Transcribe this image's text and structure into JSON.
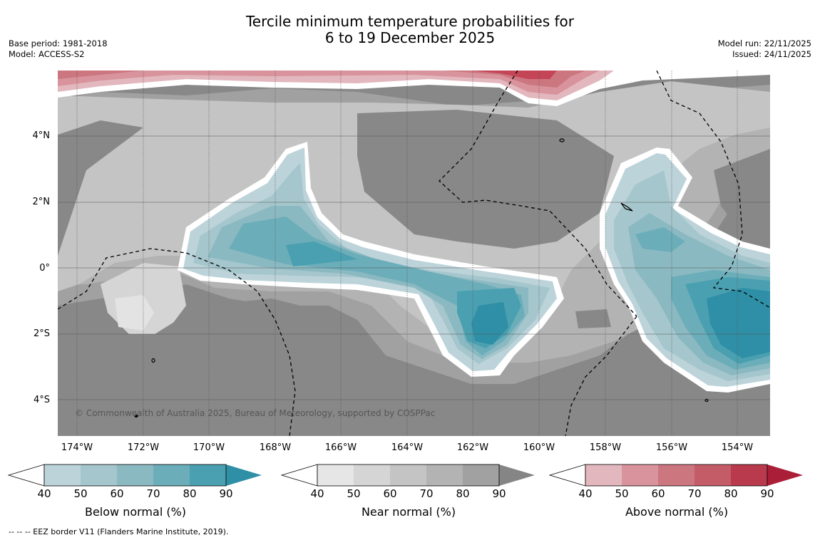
{
  "title": {
    "line1": "Tercile minimum temperature probabilities for",
    "line2": "6 to 19 December 2025"
  },
  "meta_left": {
    "base_period": "Base period: 1981-2018",
    "model": "Model: ACCESS-S2"
  },
  "meta_right": {
    "model_run": "Model run: 22/11/2025",
    "issued": "Issued: 24/11/2025"
  },
  "map": {
    "lat_labels": [
      "4°N",
      "2°N",
      "0°",
      "2°S",
      "4°S"
    ],
    "lon_labels": [
      "174°W",
      "172°W",
      "170°W",
      "168°W",
      "166°W",
      "164°W",
      "162°W",
      "160°W",
      "158°W",
      "156°W",
      "154°W"
    ],
    "copyright": "© Commonwealth of Australia 2025, Bureau of Meteorology, supported by COSPPac"
  },
  "colorbars": [
    {
      "label": "Below normal (%)",
      "ticks": [
        "40",
        "50",
        "60",
        "70",
        "80",
        "90"
      ],
      "colors": [
        "#bcd3da",
        "#a5c6cc",
        "#8bb9c2",
        "#6badb9",
        "#4aa0b0",
        "#2e8fa6"
      ]
    },
    {
      "label": "Near normal (%)",
      "ticks": [
        "40",
        "50",
        "60",
        "70",
        "80",
        "90"
      ],
      "colors": [
        "#e6e6e6",
        "#d5d5d5",
        "#c4c4c4",
        "#b3b3b3",
        "#a1a1a1",
        "#858585"
      ]
    },
    {
      "label": "Above normal (%)",
      "ticks": [
        "40",
        "50",
        "60",
        "70",
        "80",
        "90"
      ],
      "colors": [
        "#e2b7bd",
        "#d8939c",
        "#cc7680",
        "#c45c68",
        "#b93a4c",
        "#ab1e37"
      ]
    }
  ],
  "footer": "-- -- -- EEZ border V11 (Flanders Marine Institute, 2019)."
}
